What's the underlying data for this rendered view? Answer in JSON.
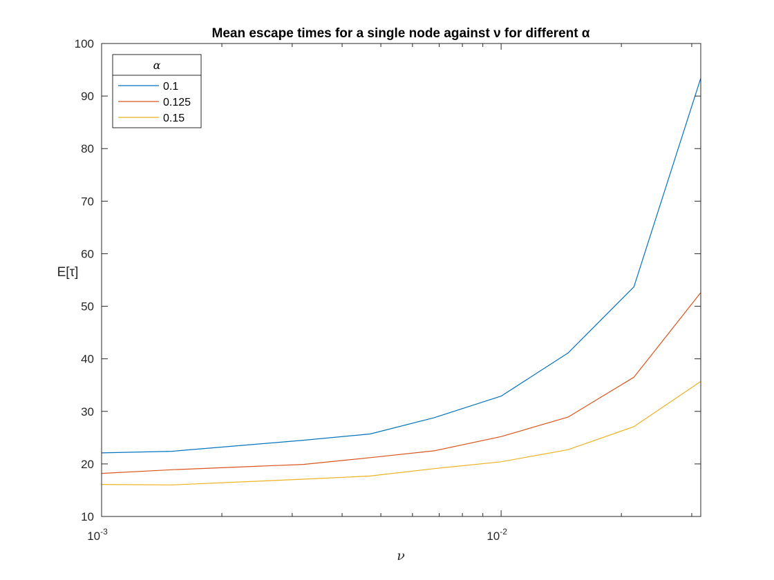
{
  "chart_data": {
    "type": "line",
    "title": "Mean escape times for a single node against ν for different α",
    "xlabel": "ν",
    "ylabel": "E[τ]",
    "xscale": "log",
    "xlim": [
      0.001,
      0.0316
    ],
    "ylim": [
      10,
      100
    ],
    "yticks": [
      10,
      20,
      30,
      40,
      50,
      60,
      70,
      80,
      90,
      100
    ],
    "yticklabels": [
      "10",
      "20",
      "30",
      "40",
      "50",
      "60",
      "70",
      "80",
      "90",
      "100"
    ],
    "xticks": [
      {
        "value": 0.001,
        "base": "10",
        "exp": "-3"
      },
      {
        "value": 0.01,
        "base": "10",
        "exp": "-2"
      }
    ],
    "grid": false,
    "legend_title": "α",
    "legend_position": "top-left",
    "x": [
      0.001,
      0.0015,
      0.0032,
      0.0047,
      0.0068,
      0.01,
      0.0147,
      0.0215,
      0.0316
    ],
    "series": [
      {
        "name": "0.1",
        "color": "#0072BD",
        "values": [
          22.1,
          22.4,
          24.5,
          25.7,
          28.8,
          32.9,
          41.1,
          53.7,
          93.4
        ]
      },
      {
        "name": "0.125",
        "color": "#D95319",
        "values": [
          18.2,
          18.9,
          19.9,
          21.2,
          22.5,
          25.2,
          28.9,
          36.5,
          52.6
        ]
      },
      {
        "name": "0.15",
        "color": "#EDB120",
        "values": [
          16.1,
          16.0,
          17.1,
          17.7,
          19.1,
          20.4,
          22.7,
          27.1,
          35.7
        ]
      }
    ]
  }
}
